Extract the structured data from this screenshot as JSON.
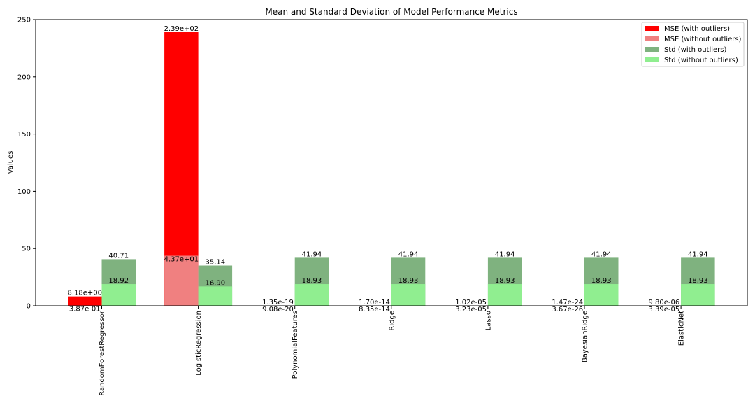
{
  "chart_data": {
    "type": "bar",
    "title": "Mean and Standard Deviation of Model Performance Metrics",
    "xlabel": "",
    "ylabel": "Values",
    "ylim": [
      0,
      250
    ],
    "yticks": [
      0,
      50,
      100,
      150,
      200,
      250
    ],
    "legend_position": "top-right",
    "grid": false,
    "categories": [
      "RandomForestRegressor",
      "LogisticRegression",
      "PolynomialFeatures",
      "Ridge",
      "Lasso",
      "BayesianRidge",
      "ElasticNet"
    ],
    "series": [
      {
        "name": "MSE (with outliers)",
        "color": "#ff0000",
        "values": [
          8.18,
          239,
          1.35e-19,
          1.7e-14,
          1.02e-05,
          1.47e-24,
          9.8e-06
        ],
        "labels": [
          "8.18e+00",
          "2.39e+02",
          "1.35e-19",
          "1.70e-14",
          "1.02e-05",
          "1.47e-24",
          "9.80e-06"
        ]
      },
      {
        "name": "MSE (without outliers)",
        "color": "#f08080",
        "values": [
          0.387,
          43.7,
          9.08e-20,
          8.35e-14,
          3.23e-05,
          3.67e-26,
          3.39e-05
        ],
        "labels": [
          "3.87e-01",
          "4.37e+01",
          "9.08e-20",
          "8.35e-14",
          "3.23e-05",
          "3.67e-26",
          "3.39e-05"
        ]
      },
      {
        "name": "Std (with outliers)",
        "color": "#7fb27f",
        "values": [
          40.71,
          35.14,
          41.94,
          41.94,
          41.94,
          41.94,
          41.94
        ],
        "labels": [
          "40.71",
          "35.14",
          "41.94",
          "41.94",
          "41.94",
          "41.94",
          "41.94"
        ]
      },
      {
        "name": "Std (without outliers)",
        "color": "#90ee90",
        "values": [
          18.92,
          16.9,
          18.93,
          18.93,
          18.93,
          18.93,
          18.93
        ],
        "labels": [
          "18.92",
          "16.90",
          "18.93",
          "18.93",
          "18.93",
          "18.93",
          "18.93"
        ]
      }
    ]
  }
}
